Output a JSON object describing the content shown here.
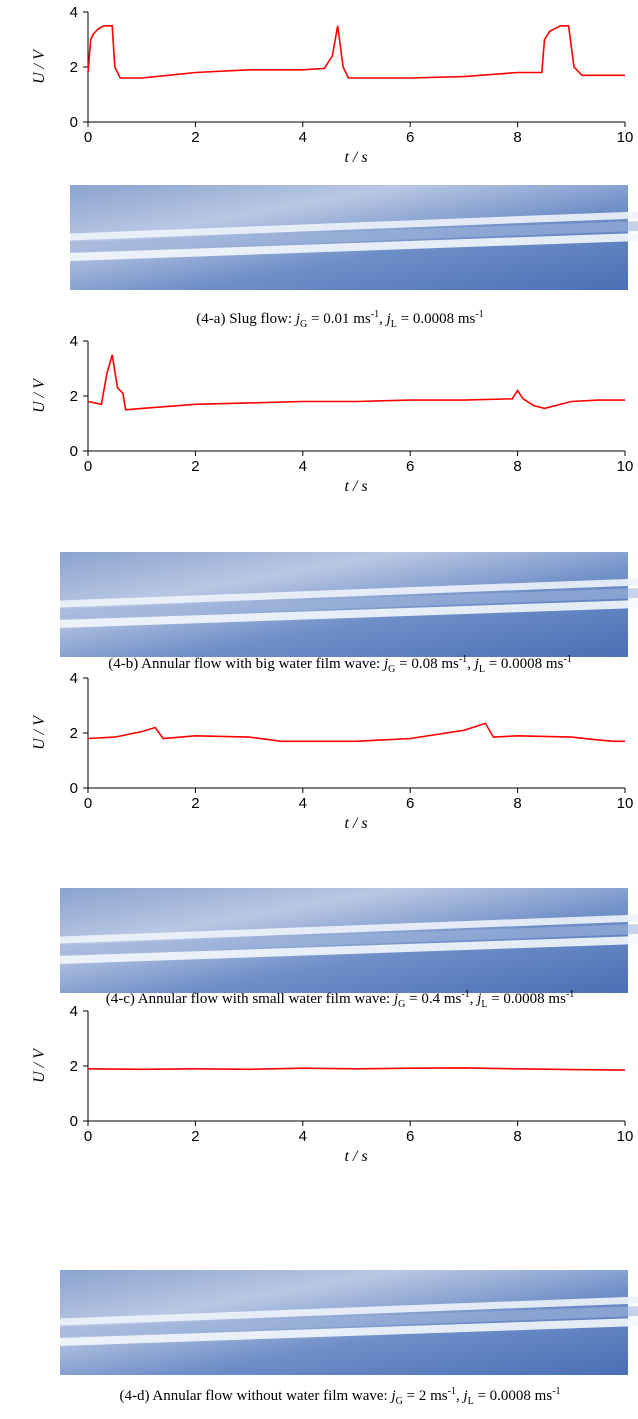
{
  "chart_data": [
    {
      "type": "line",
      "xlabel": "t / s",
      "ylabel": "U / V",
      "color": "#ff0000",
      "xlim": [
        0,
        10
      ],
      "ylim": [
        0,
        4
      ],
      "xticks": [
        0,
        2,
        4,
        6,
        8,
        10
      ],
      "yticks": [
        0,
        2,
        4
      ],
      "x": [
        0,
        0.05,
        0.1,
        0.2,
        0.3,
        0.45,
        0.5,
        0.6,
        1,
        1.5,
        2,
        3,
        4,
        4.4,
        4.55,
        4.65,
        4.75,
        4.85,
        5,
        5.5,
        6,
        7,
        8,
        8.45,
        8.5,
        8.6,
        8.8,
        8.95,
        9.05,
        9.2,
        10
      ],
      "values": [
        1.8,
        3.0,
        3.2,
        3.4,
        3.5,
        3.5,
        2.0,
        1.6,
        1.6,
        1.7,
        1.8,
        1.9,
        1.9,
        1.95,
        2.4,
        3.5,
        2.0,
        1.6,
        1.6,
        1.6,
        1.6,
        1.65,
        1.8,
        1.8,
        3.0,
        3.3,
        3.5,
        3.5,
        2.0,
        1.7,
        1.7
      ],
      "caption": [
        "(4-a) Slug flow: ",
        "j",
        "G",
        " = 0.01 ms",
        "-1",
        ", ",
        "j",
        "L",
        " = 0.0008 ms",
        "-1"
      ]
    },
    {
      "type": "line",
      "xlabel": "t / s",
      "ylabel": "U / V",
      "color": "#ff0000",
      "xlim": [
        0,
        10
      ],
      "ylim": [
        0,
        4
      ],
      "xticks": [
        0,
        2,
        4,
        6,
        8,
        10
      ],
      "yticks": [
        0,
        2,
        4
      ],
      "x": [
        0,
        0.25,
        0.35,
        0.45,
        0.55,
        0.65,
        0.7,
        1,
        2,
        3,
        4,
        5,
        6,
        7,
        7.9,
        8,
        8.1,
        8.3,
        8.5,
        9,
        9.5,
        10
      ],
      "values": [
        1.8,
        1.7,
        2.8,
        3.5,
        2.3,
        2.1,
        1.5,
        1.55,
        1.7,
        1.75,
        1.8,
        1.8,
        1.85,
        1.85,
        1.9,
        2.2,
        1.9,
        1.65,
        1.55,
        1.8,
        1.85,
        1.85
      ],
      "caption": [
        "(4-b) Annular flow with big water film wave: ",
        "j",
        "G",
        " = 0.08 ms",
        "-1",
        ", ",
        "j",
        "L",
        " = 0.0008 ms",
        "-1"
      ]
    },
    {
      "type": "line",
      "xlabel": "t / s",
      "ylabel": "U / V",
      "color": "#ff0000",
      "xlim": [
        0,
        10
      ],
      "ylim": [
        0,
        4
      ],
      "xticks": [
        0,
        2,
        4,
        6,
        8,
        10
      ],
      "yticks": [
        0,
        2,
        4
      ],
      "x": [
        0,
        0.5,
        1,
        1.25,
        1.4,
        2,
        3,
        3.6,
        5,
        6,
        7,
        7.4,
        7.55,
        8,
        9,
        9.5,
        9.8,
        10
      ],
      "values": [
        1.8,
        1.85,
        2.05,
        2.2,
        1.8,
        1.9,
        1.85,
        1.7,
        1.7,
        1.8,
        2.1,
        2.35,
        1.85,
        1.9,
        1.85,
        1.75,
        1.7,
        1.7
      ],
      "caption": [
        "(4-c) Annular flow with small water film wave: ",
        "j",
        "G",
        " = 0.4 ms",
        "-1",
        ", ",
        "j",
        "L",
        " = 0.0008 ms",
        "-1"
      ]
    },
    {
      "type": "line",
      "xlabel": "t / s",
      "ylabel": "U / V",
      "color": "#ff0000",
      "xlim": [
        0,
        10
      ],
      "ylim": [
        0,
        4
      ],
      "xticks": [
        0,
        2,
        4,
        6,
        8,
        10
      ],
      "yticks": [
        0,
        2,
        4
      ],
      "x": [
        0,
        1,
        2,
        3,
        4,
        5,
        6,
        7,
        8,
        9,
        10
      ],
      "values": [
        1.9,
        1.88,
        1.9,
        1.88,
        1.92,
        1.9,
        1.92,
        1.93,
        1.9,
        1.87,
        1.85
      ],
      "caption": [
        "(4-d) Annular flow without water film wave: ",
        "j",
        "G",
        " = 2 ms",
        "-1",
        ", ",
        "j",
        "L",
        " = 0.0008 ms",
        "-1"
      ]
    }
  ]
}
